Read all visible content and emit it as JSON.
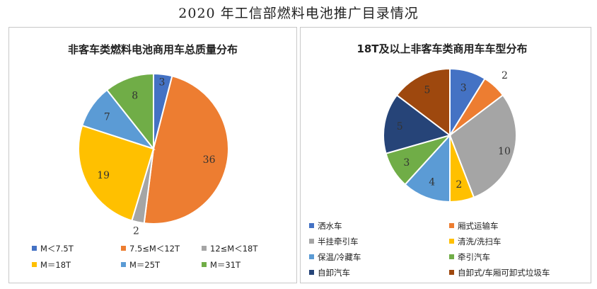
{
  "page_title": "2020 年工信部燃料电池推广目录情况",
  "chart_data": [
    {
      "type": "pie",
      "title": "非客车类燃料电池商用车总质量分布",
      "categories": [
        "M＜7.5T",
        "7.5≤M＜12T",
        "12≤M＜18T",
        "M＝18T",
        "M＝25T",
        "M＝31T"
      ],
      "values": [
        3,
        36,
        2,
        19,
        7,
        8
      ],
      "colors": [
        "#4472c4",
        "#ed7d31",
        "#a5a5a5",
        "#ffc000",
        "#5b9bd5",
        "#70ad47"
      ],
      "legend": "bottom"
    },
    {
      "type": "pie",
      "title": "18T及以上非客车类商用车车型分布",
      "categories": [
        "洒水车",
        "厢式运输车",
        "半挂牵引车",
        "清洗/洗扫车",
        "保温/冷藏车",
        "牵引汽车",
        "自卸汽车",
        "自卸式/车厢可卸式垃圾车"
      ],
      "values": [
        3,
        2,
        10,
        2,
        4,
        3,
        5,
        5
      ],
      "colors": [
        "#4472c4",
        "#ed7d31",
        "#a5a5a5",
        "#ffc000",
        "#5b9bd5",
        "#70ad47",
        "#264478",
        "#9e480e"
      ],
      "legend": "bottom"
    }
  ]
}
